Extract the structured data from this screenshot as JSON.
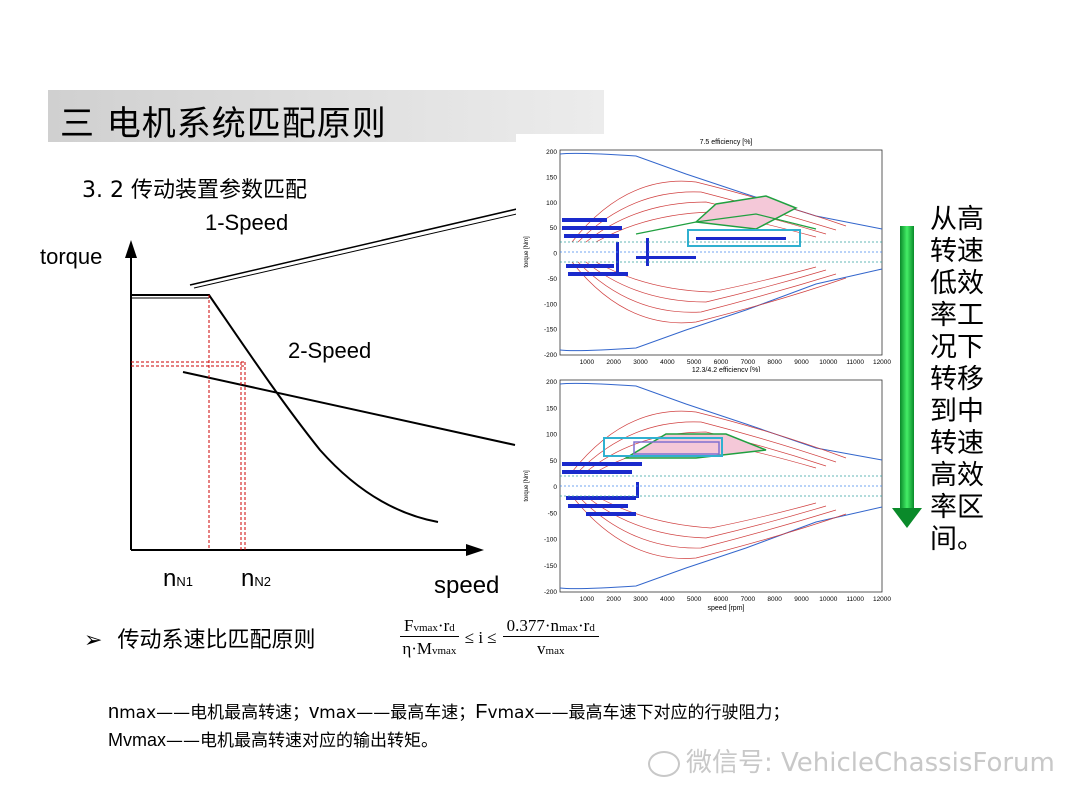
{
  "slide": {
    "title": "三 电机系统匹配原则",
    "subtitle": "3. 2  传动装置参数匹配"
  },
  "sketch": {
    "label_1speed": "1-Speed",
    "label_2speed": "2-Speed",
    "y_axis": "torque",
    "x_axis": "speed",
    "n1_main": "n",
    "n1_sub": "N1",
    "n2_main": "n",
    "n2_sub": "N2"
  },
  "plot_top": {
    "title": "7.5  efficiency [%]",
    "xlabel": "12.3/4.2  efficiency [%]",
    "ylabel": "torque [Nm]",
    "yticks": [
      "200",
      "150",
      "100",
      "50",
      "0",
      "-50",
      "-100",
      "-150",
      "-200"
    ],
    "xticks": [
      "1000",
      "2000",
      "3000",
      "4000",
      "5000",
      "6000",
      "7000",
      "8000",
      "9000",
      "10000",
      "11000",
      "12000"
    ]
  },
  "plot_bottom": {
    "xlabel": "speed [rpm]",
    "ylabel": "torque [Nm]",
    "yticks": [
      "200",
      "150",
      "100",
      "50",
      "0",
      "-50",
      "-100",
      "-150",
      "-200"
    ],
    "xticks": [
      "1000",
      "2000",
      "3000",
      "4000",
      "5000",
      "6000",
      "7000",
      "8000",
      "9000",
      "10000",
      "11000",
      "12000"
    ]
  },
  "side_note": [
    "从",
    "高",
    "转",
    "速",
    "低",
    "效",
    "率",
    "工",
    "况",
    "下",
    "转",
    "移",
    "到",
    "中",
    "转",
    "速",
    "高",
    "效",
    "率",
    "区",
    "间。"
  ],
  "side_note_rows": [
    "从高",
    "转速",
    "低效",
    "率工",
    "况下",
    "转移",
    "到中",
    "转速",
    "高效",
    "率区",
    "间。"
  ],
  "arrow_color": "#22cc44",
  "principle": {
    "bullet": "➢",
    "label": "传动系速比匹配原则",
    "formula_left_num_F": "F",
    "formula_left_num_sub": "vmax",
    "formula_left_num_rest": "·r",
    "formula_left_num_d": "d",
    "formula_left_den": "η·M",
    "formula_left_den_sub": "vmax",
    "formula_mid": "≤ i ≤",
    "formula_right_num": "0.377·n",
    "formula_right_num_sub": "max",
    "formula_right_num_rest": "·r",
    "formula_right_num_d": "d",
    "formula_right_den": "v",
    "formula_right_den_sub": "max"
  },
  "notes": {
    "line1_a": "n",
    "line1_b": "max——电机最高转速；",
    "line1_c": "v",
    "line1_d": "max——最高车速；",
    "line1_e": "F",
    "line1_f": "vmax——最高车速下对应的行驶阻力；",
    "line2_a": "Mvmax",
    "line2_b": "——电机最高转速对应的输出转矩。"
  },
  "watermark": "微信号: VehicleChassisForum"
}
